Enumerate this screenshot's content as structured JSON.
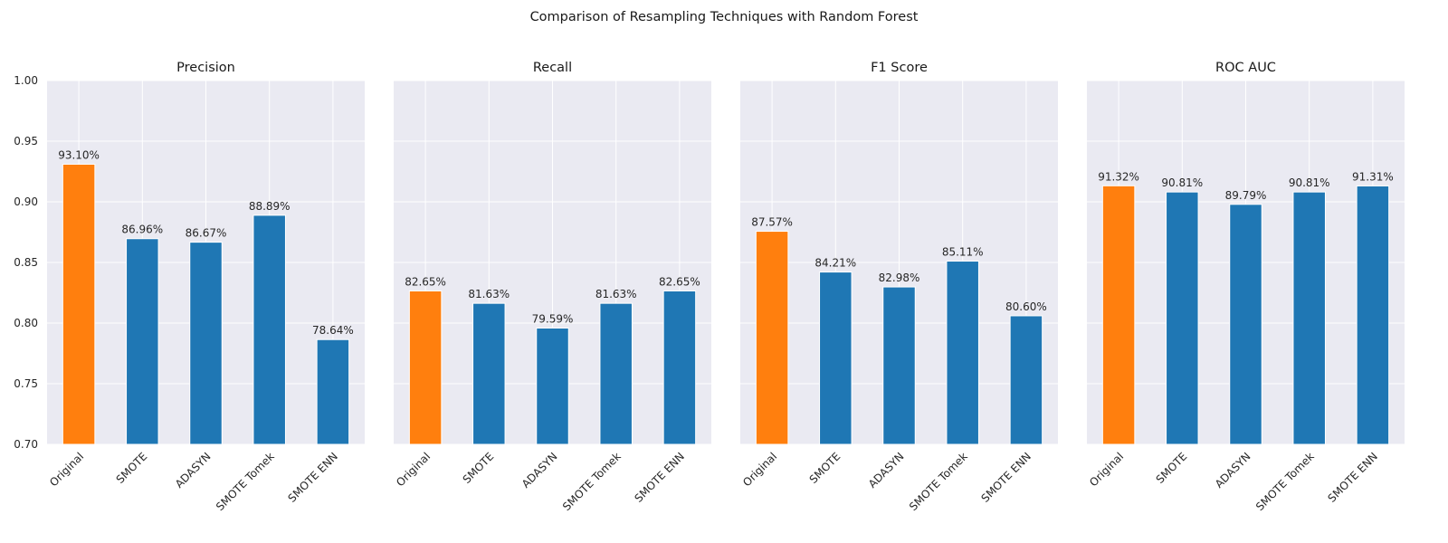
{
  "figure": {
    "title": "Comparison of Resampling Techniques with Random Forest"
  },
  "colors": {
    "highlight": "#ff7f0e",
    "bar": "#1f77b4",
    "panel_bg": "#eaeaf2",
    "grid": "#ffffff"
  },
  "chart_data": [
    {
      "type": "bar",
      "title": "Precision",
      "categories": [
        "Original",
        "SMOTE",
        "ADASYN",
        "SMOTE Tomek",
        "SMOTE ENN"
      ],
      "values": [
        0.931,
        0.8696,
        0.8667,
        0.8889,
        0.7864
      ],
      "labels": [
        "93.10%",
        "86.96%",
        "86.67%",
        "88.89%",
        "78.64%"
      ],
      "ylim": [
        0.7,
        1.0
      ],
      "yticks": [
        "0.70",
        "0.75",
        "0.80",
        "0.85",
        "0.90",
        "0.95",
        "1.00"
      ],
      "grid": true,
      "highlight_index": 0
    },
    {
      "type": "bar",
      "title": "Recall",
      "categories": [
        "Original",
        "SMOTE",
        "ADASYN",
        "SMOTE Tomek",
        "SMOTE ENN"
      ],
      "values": [
        0.8265,
        0.8163,
        0.7959,
        0.8163,
        0.8265
      ],
      "labels": [
        "82.65%",
        "81.63%",
        "79.59%",
        "81.63%",
        "82.65%"
      ],
      "ylim": [
        0.7,
        1.0
      ],
      "grid": true,
      "highlight_index": 0
    },
    {
      "type": "bar",
      "title": "F1 Score",
      "categories": [
        "Original",
        "SMOTE",
        "ADASYN",
        "SMOTE Tomek",
        "SMOTE ENN"
      ],
      "values": [
        0.8757,
        0.8421,
        0.8298,
        0.8511,
        0.806
      ],
      "labels": [
        "87.57%",
        "84.21%",
        "82.98%",
        "85.11%",
        "80.60%"
      ],
      "ylim": [
        0.7,
        1.0
      ],
      "grid": true,
      "highlight_index": 0
    },
    {
      "type": "bar",
      "title": "ROC AUC",
      "categories": [
        "Original",
        "SMOTE",
        "ADASYN",
        "SMOTE Tomek",
        "SMOTE ENN"
      ],
      "values": [
        0.9132,
        0.9081,
        0.8979,
        0.9081,
        0.9131
      ],
      "labels": [
        "91.32%",
        "90.81%",
        "89.79%",
        "90.81%",
        "91.31%"
      ],
      "ylim": [
        0.7,
        1.0
      ],
      "grid": true,
      "highlight_index": 0
    }
  ]
}
